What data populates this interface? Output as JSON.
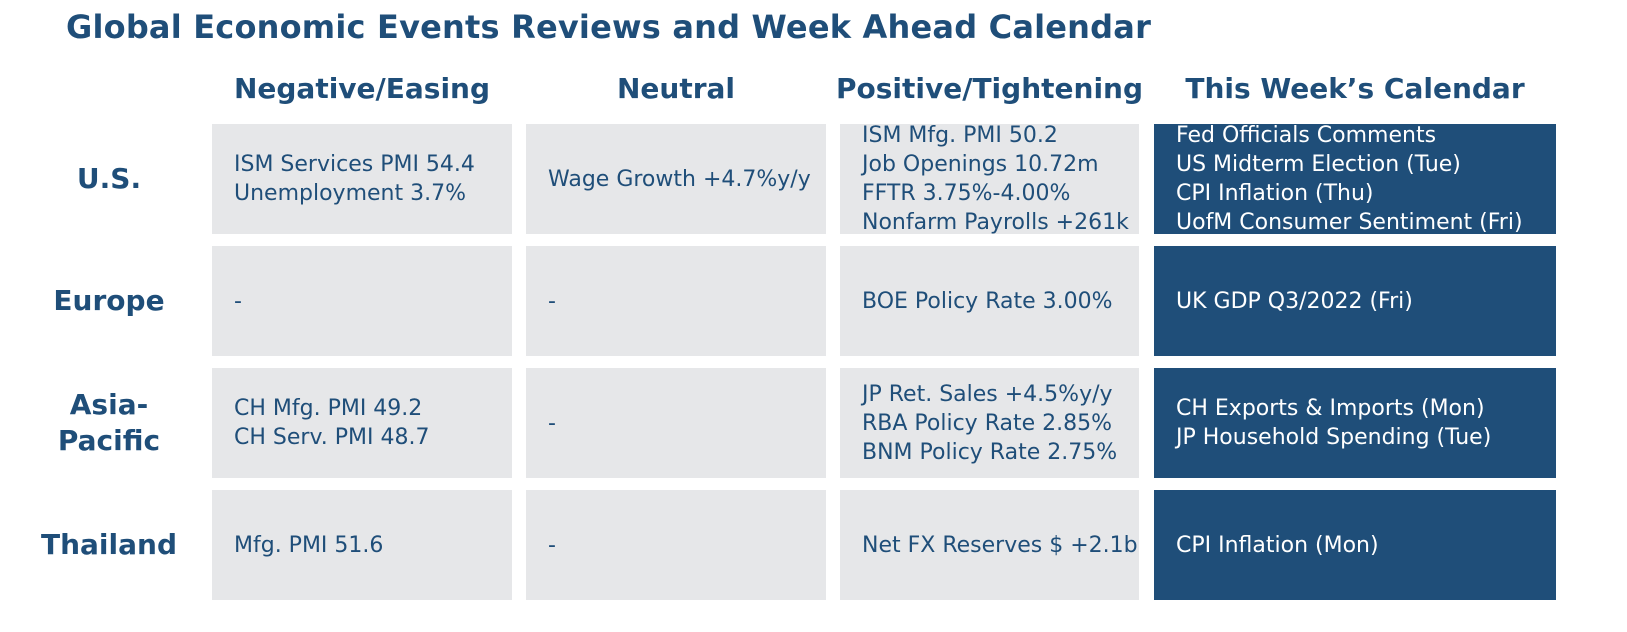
{
  "title": "Global Economic Events Reviews and Week Ahead Calendar",
  "columns": [
    "Negative/Easing",
    "Neutral",
    "Positive/Tightening",
    "This Week’s Calendar"
  ],
  "rows": [
    {
      "label": [
        "U.S."
      ],
      "negative": [
        "ISM Services PMI 54.4",
        "Unemployment 3.7%"
      ],
      "neutral": [
        "Wage Growth +4.7%y/y"
      ],
      "positive": [
        "ISM Mfg. PMI 50.2",
        "Job Openings 10.72m",
        "FFTR 3.75%-4.00%",
        "Nonfarm Payrolls +261k"
      ],
      "calendar": [
        "Fed Officials Comments",
        "US Midterm Election (Tue)",
        "CPI Inflation (Thu)",
        "UofM Consumer Sentiment (Fri)"
      ]
    },
    {
      "label": [
        "Europe"
      ],
      "negative": [
        "-"
      ],
      "neutral": [
        "-"
      ],
      "positive": [
        "BOE Policy Rate 3.00%"
      ],
      "calendar": [
        "UK GDP Q3/2022 (Fri)"
      ]
    },
    {
      "label": [
        "Asia-",
        "Pacific"
      ],
      "negative": [
        "CH Mfg. PMI 49.2",
        "CH Serv. PMI 48.7"
      ],
      "neutral": [
        "-"
      ],
      "positive": [
        "JP Ret. Sales +4.5%y/y",
        "RBA Policy Rate 2.85%",
        "BNM Policy Rate 2.75%"
      ],
      "calendar": [
        "CH Exports & Imports (Mon)",
        "JP Household Spending (Tue)"
      ]
    },
    {
      "label": [
        "Thailand"
      ],
      "negative": [
        "Mfg. PMI 51.6"
      ],
      "neutral": [
        "-"
      ],
      "positive": [
        "Net FX Reserves $ +2.1b"
      ],
      "calendar": [
        "CPI Inflation (Mon)"
      ]
    }
  ],
  "colors": {
    "navy": "#1f4e79",
    "cell_grey": "#e6e7e9",
    "white": "#ffffff"
  }
}
